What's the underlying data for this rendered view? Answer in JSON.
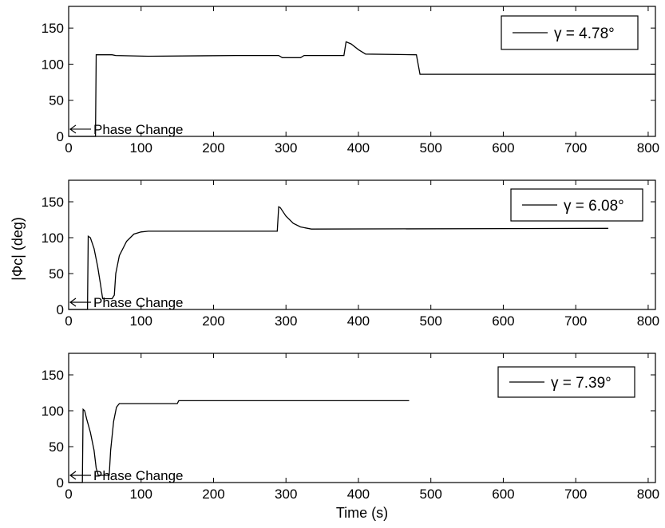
{
  "chart_data": [
    {
      "type": "line",
      "xlim": [
        0,
        810
      ],
      "ylim": [
        0,
        180
      ],
      "xticks": [
        0,
        100,
        200,
        300,
        400,
        500,
        600,
        700,
        800
      ],
      "yticks": [
        0,
        50,
        100,
        150
      ],
      "legend": "γ = 4.78°",
      "legend_position": "top-right",
      "annotation": "Phase Change",
      "annotation_x": 0,
      "annotation_y": 10,
      "x": [
        0,
        37,
        38,
        60,
        65,
        110,
        230,
        290,
        295,
        320,
        325,
        380,
        383,
        390,
        400,
        410,
        480,
        485,
        810
      ],
      "y": [
        0,
        0,
        113,
        113,
        112,
        111,
        112,
        112,
        109,
        109,
        112,
        112,
        131,
        128,
        120,
        114,
        113,
        86,
        86
      ]
    },
    {
      "type": "line",
      "xlim": [
        0,
        810
      ],
      "ylim": [
        0,
        180
      ],
      "xticks": [
        0,
        100,
        200,
        300,
        400,
        500,
        600,
        700,
        800
      ],
      "yticks": [
        0,
        50,
        100,
        150
      ],
      "ylabel": "|Φc| (deg)",
      "legend": "γ = 6.08°",
      "legend_position": "top-right",
      "annotation": "Phase Change",
      "annotation_x": 0,
      "annotation_y": 10,
      "x": [
        0,
        26,
        27,
        30,
        35,
        40,
        44,
        47,
        60,
        63,
        65,
        70,
        80,
        90,
        100,
        110,
        288,
        290,
        292,
        300,
        310,
        320,
        335,
        745
      ],
      "y": [
        0,
        0,
        102,
        100,
        85,
        60,
        35,
        15,
        15,
        20,
        50,
        75,
        95,
        105,
        108,
        109,
        109,
        143,
        142,
        130,
        120,
        115,
        112,
        113
      ]
    },
    {
      "type": "line",
      "xlim": [
        0,
        810
      ],
      "ylim": [
        0,
        180
      ],
      "xticks": [
        0,
        100,
        200,
        300,
        400,
        500,
        600,
        700,
        800
      ],
      "yticks": [
        0,
        50,
        100,
        150
      ],
      "xlabel": "Time (s)",
      "legend": "γ = 7.39°",
      "legend_position": "top-right",
      "annotation": "Phase Change",
      "annotation_x": 0,
      "annotation_y": 10,
      "x": [
        0,
        19,
        20,
        22,
        25,
        30,
        35,
        38,
        41,
        56,
        58,
        62,
        66,
        70,
        150,
        152,
        470
      ],
      "y": [
        0,
        0,
        102,
        100,
        88,
        70,
        45,
        20,
        10,
        10,
        45,
        85,
        105,
        110,
        110,
        114,
        114
      ]
    }
  ]
}
